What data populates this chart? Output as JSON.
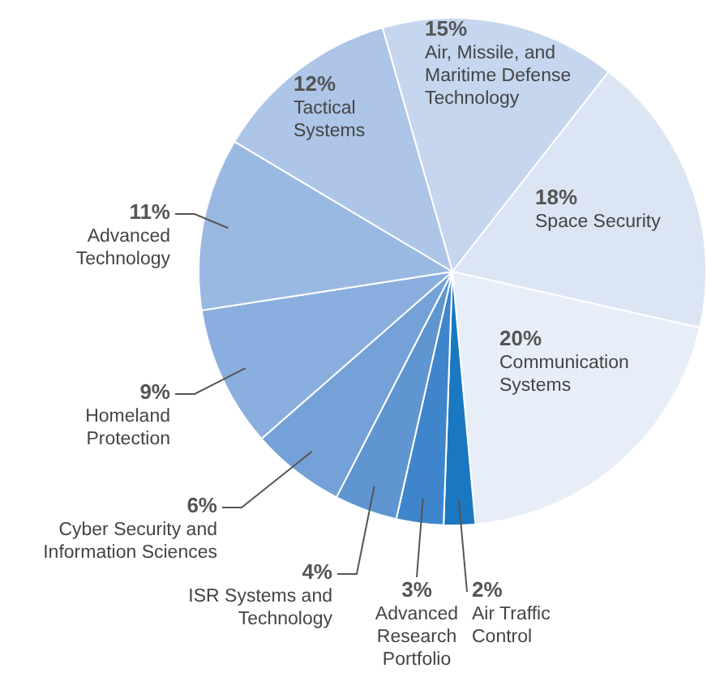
{
  "chart_data": {
    "type": "pie",
    "categories": [
      "Air, Missile, and Maritime Defense Technology",
      "Space Security",
      "Communication Systems",
      "Air Traffic Control",
      "Advanced Research Portfolio",
      "ISR Systems and Technology",
      "Cyber Security and Information Sciences",
      "Homeland Protection",
      "Advanced Technology",
      "Tactical Systems"
    ],
    "values": [
      15,
      18,
      20,
      2,
      3,
      4,
      6,
      9,
      11,
      12
    ],
    "colors": [
      "#c5d6ee",
      "#dbe5f3",
      "#e8eef8",
      "#1a78c2",
      "#3f85cc",
      "#5f95d1",
      "#74a1d7",
      "#8aafdf",
      "#9ab9e2",
      "#adc5e6"
    ],
    "value_labels": [
      "15%",
      "18%",
      "20%",
      "2%",
      "3%",
      "4%",
      "6%",
      "9%",
      "11%",
      "12%"
    ],
    "legend": false
  }
}
